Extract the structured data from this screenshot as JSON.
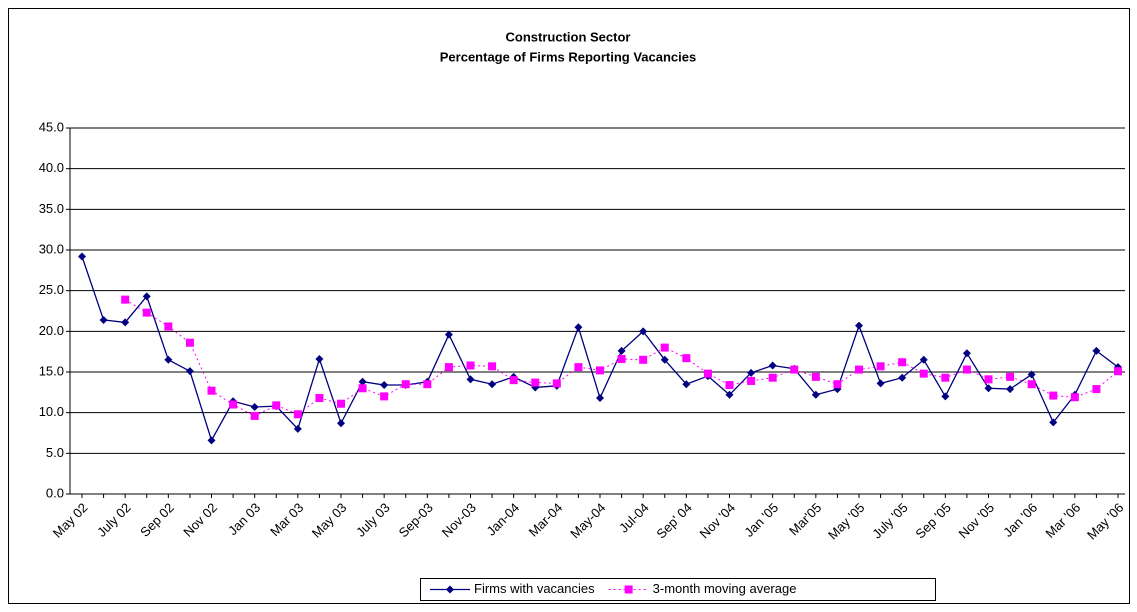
{
  "chart_data": {
    "type": "line",
    "title": "Construction Sector",
    "subtitle": "Percentage of Firms Reporting Vacancies",
    "categories": [
      "May 02",
      null,
      "July 02",
      null,
      "Sep 02",
      null,
      "Nov 02",
      null,
      "Jan 03",
      null,
      "Mar 03",
      null,
      "May 03",
      null,
      "July 03",
      null,
      "Sep-03",
      null,
      "Nov-03",
      null,
      "Jan-04",
      null,
      "Mar-04",
      null,
      "May-04",
      null,
      "Jul-04",
      null,
      "Sep' 04",
      null,
      "Nov '04",
      null,
      "Jan '05",
      null,
      "Mar'05",
      null,
      "May '05",
      null,
      "July '05",
      null,
      "Sep '05",
      null,
      "Nov '05",
      null,
      "Jan '06",
      null,
      "Mar '06",
      null,
      "May '06"
    ],
    "series": [
      {
        "name": "Firms with vacancies",
        "color": "#000080",
        "values": [
          29.2,
          21.4,
          21.1,
          24.3,
          16.5,
          15.1,
          6.6,
          11.4,
          10.7,
          10.8,
          8.0,
          16.6,
          8.7,
          13.8,
          13.4,
          13.4,
          13.8,
          19.6,
          14.1,
          13.5,
          14.4,
          13.1,
          13.3,
          20.5,
          11.8,
          17.6,
          20.0,
          16.5,
          13.5,
          14.5,
          12.2,
          14.9,
          15.8,
          15.4,
          12.2,
          12.9,
          20.7,
          13.6,
          14.3,
          16.5,
          12.0,
          17.3,
          13.0,
          12.9,
          14.7,
          8.8,
          12.2,
          17.6,
          15.6
        ]
      },
      {
        "name": "3-month moving average",
        "color": "#ff00ff",
        "values": [
          null,
          null,
          23.9,
          22.3,
          20.6,
          18.6,
          12.7,
          11.0,
          9.6,
          10.9,
          9.8,
          11.8,
          11.1,
          13.0,
          12.0,
          13.5,
          13.5,
          15.6,
          15.8,
          15.7,
          14.0,
          13.7,
          13.6,
          15.6,
          15.2,
          16.6,
          16.5,
          18.0,
          16.7,
          14.8,
          13.4,
          13.9,
          14.3,
          15.3,
          14.4,
          13.5,
          15.3,
          15.7,
          16.2,
          14.8,
          14.3,
          15.3,
          14.1,
          14.4,
          13.5,
          12.1,
          11.9,
          12.9,
          15.1
        ]
      }
    ],
    "ylim": [
      0,
      45
    ],
    "yticks": [
      {
        "value": 0,
        "label": "0.0"
      },
      {
        "value": 5,
        "label": "5.0"
      },
      {
        "value": 10,
        "label": "10.0"
      },
      {
        "value": 15,
        "label": "15.0"
      },
      {
        "value": 20,
        "label": "20.0"
      },
      {
        "value": 25,
        "label": "25.0"
      },
      {
        "value": 30,
        "label": "30.0"
      },
      {
        "value": 35,
        "label": "35.0"
      },
      {
        "value": 40,
        "label": "40.0"
      },
      {
        "value": 45,
        "label": "45.0"
      }
    ],
    "grid": true,
    "legend": "bottom"
  }
}
